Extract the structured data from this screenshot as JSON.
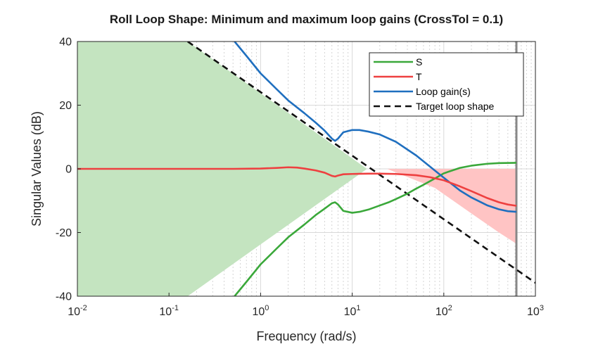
{
  "colors": {
    "S": "#3aa83a",
    "T": "#ee4040",
    "loop": "#1f6fbf",
    "target": "#111111",
    "green_fill": "#c4e4c0",
    "red_fill": "#ffc4c4",
    "gray_line": "#888888"
  },
  "chart_data": {
    "type": "line",
    "title": "Roll Loop Shape: Minimum and maximum loop gains (CrossTol = 0.1)",
    "xlabel": "Frequency (rad/s)",
    "ylabel": "Singular Values (dB)",
    "xscale": "log",
    "xlim": [
      0.01,
      1000
    ],
    "ylim": [
      -40,
      40
    ],
    "grid": true,
    "legend_position": "top-right",
    "x_ticks": [
      {
        "base": "10",
        "exp": "-2"
      },
      {
        "base": "10",
        "exp": "-1"
      },
      {
        "base": "10",
        "exp": "0"
      },
      {
        "base": "10",
        "exp": "1"
      },
      {
        "base": "10",
        "exp": "2"
      },
      {
        "base": "10",
        "exp": "3"
      }
    ],
    "y_ticks": [
      "-40",
      "-20",
      "0",
      "20",
      "40"
    ],
    "vertical_marker_x": 620,
    "green_region": {
      "upper": [
        [
          0.01,
          40
        ],
        [
          0.16,
          40
        ],
        [
          14.5,
          0
        ]
      ],
      "lower": [
        [
          0.01,
          -40
        ],
        [
          0.16,
          -40
        ],
        [
          14.5,
          0
        ]
      ]
    },
    "red_region": {
      "upper": [
        [
          24,
          0
        ],
        [
          620,
          0
        ]
      ],
      "lower": [
        [
          24,
          0
        ],
        [
          80,
          -6
        ],
        [
          200,
          -14
        ],
        [
          400,
          -20
        ],
        [
          620,
          -23.5
        ]
      ]
    },
    "series": [
      {
        "name": "S",
        "x": [
          0.52,
          0.7,
          1,
          1.5,
          2,
          3,
          4,
          5,
          6,
          6.5,
          7,
          8,
          10,
          12,
          15,
          20,
          25,
          30,
          40,
          50,
          60,
          80,
          100,
          150,
          200,
          300,
          400,
          620
        ],
        "y": [
          -40,
          -35.5,
          -30,
          -25,
          -21.5,
          -17.5,
          -14.5,
          -12.5,
          -10.8,
          -10.5,
          -11.2,
          -13.2,
          -13.8,
          -13.5,
          -12.8,
          -11.5,
          -10.5,
          -9.5,
          -7.8,
          -6.2,
          -5,
          -3,
          -1.4,
          0.3,
          1,
          1.6,
          1.8,
          1.9
        ]
      },
      {
        "name": "T",
        "x": [
          0.01,
          0.1,
          0.5,
          1,
          1.5,
          2,
          2.5,
          3,
          4,
          5,
          6,
          6.5,
          7,
          8,
          10,
          15,
          20,
          30,
          50,
          70,
          100,
          150,
          200,
          300,
          400,
          500,
          620
        ],
        "y": [
          0,
          0,
          0,
          0.1,
          0.3,
          0.5,
          0.4,
          0.1,
          -0.5,
          -1.2,
          -2.2,
          -2.4,
          -2.1,
          -1.7,
          -1.6,
          -1.5,
          -1.5,
          -1.6,
          -2,
          -2.6,
          -3.6,
          -5.5,
          -7,
          -9.2,
          -10.5,
          -11.2,
          -11.6
        ]
      },
      {
        "name": "Loop gain(s)",
        "x": [
          0.52,
          0.7,
          1,
          1.5,
          2,
          3,
          4,
          5,
          6,
          6.5,
          7,
          8,
          10,
          12,
          15,
          20,
          30,
          50,
          70,
          100,
          150,
          200,
          300,
          400,
          500,
          620
        ],
        "y": [
          40,
          35.5,
          30,
          25,
          21.5,
          17.5,
          14.5,
          12,
          9.5,
          8.8,
          9.5,
          11.5,
          12.2,
          12.2,
          11.7,
          10.8,
          8.5,
          4.2,
          0.8,
          -2.8,
          -6.8,
          -9,
          -11.5,
          -12.7,
          -13.3,
          -13.5
        ]
      },
      {
        "name": "Target loop shape",
        "x": [
          0.16,
          1000
        ],
        "y": [
          40,
          -35.8
        ]
      }
    ]
  }
}
